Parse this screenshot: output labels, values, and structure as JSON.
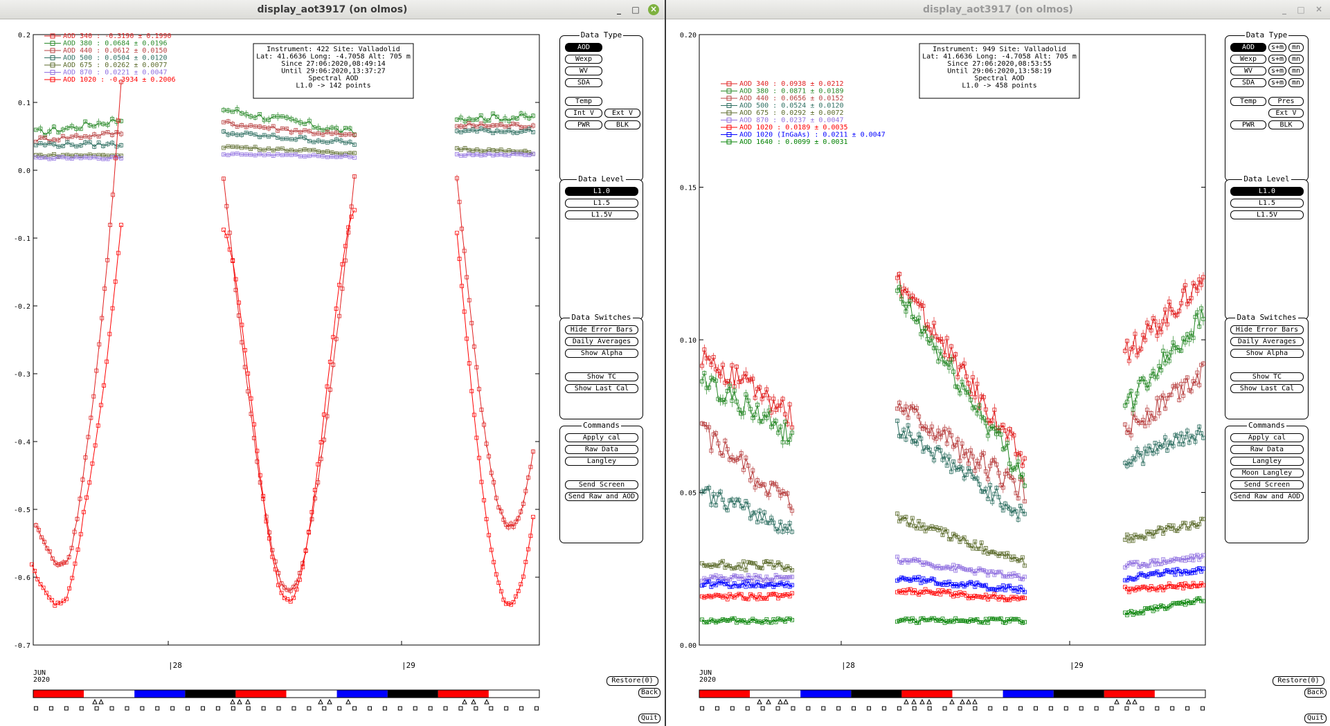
{
  "left": {
    "title": "display_aot3917 (on olmos)",
    "title_buttons": {
      "min": "_",
      "max": "□",
      "close": "×"
    },
    "plot": {
      "y_ticks": [
        "0.2",
        "0.1",
        "0.0",
        "-0.1",
        "-0.2",
        "-0.3",
        "-0.4",
        "-0.5",
        "-0.6",
        "-0.7"
      ],
      "y_min": -0.7,
      "y_max": 0.2,
      "day_labels": [
        "28",
        "29"
      ],
      "month": "JUN",
      "year": "2020",
      "info": [
        "Instrument: 422 Site: Valladolid",
        "Lat: 41.6636 Long: -4.7058 Alt: 705 m",
        "Since 27:06:2020,08:49:14",
        "Until 29:06:2020,13:37:27",
        "Spectral AOD",
        "L1.0 -> 142 points"
      ]
    },
    "legend": [
      {
        "text": "AOD 340   : -0.3190 ± 0.1990",
        "color": "#e02020"
      },
      {
        "text": "AOD 380   : 0.0684 ± 0.0196",
        "color": "#2a8a2a"
      },
      {
        "text": "AOD 440   : 0.0612 ± 0.0150",
        "color": "#b84040"
      },
      {
        "text": "AOD 500   : 0.0504 ± 0.0120",
        "color": "#2d6e60"
      },
      {
        "text": "AOD 675   : 0.0262 ± 0.0077",
        "color": "#5a6a2a"
      },
      {
        "text": "AOD 870   : 0.0221 ± 0.0047",
        "color": "#9070e0"
      },
      {
        "text": "AOD 1020  : -0.3934 ± 0.2006",
        "color": "#ff0000"
      }
    ],
    "data_type": {
      "label": "Data Type",
      "buttons": [
        "AOD",
        "Wexp",
        "WV",
        "SDA",
        "Temp",
        "Int V",
        "Ext V",
        "PWR",
        "BLK"
      ]
    },
    "data_level": {
      "label": "Data Level",
      "buttons": [
        "L1.0",
        "L1.5",
        "L1.5V"
      ]
    },
    "switches": {
      "label": "Data Switches",
      "buttons": [
        "Hide Error Bars",
        "Daily Averages",
        "Show Alpha",
        "Show TC",
        "Show Last Cal"
      ]
    },
    "commands": {
      "label": "Commands",
      "buttons": [
        "Apply cal",
        "Raw Data",
        "Langley",
        "Send Screen",
        "Send Raw and AOD"
      ]
    },
    "restore": "Restore(0)",
    "back": "Back",
    "quit": "Quit",
    "timeline_colors": [
      "#ff0000",
      "#ffffff",
      "#0000ff",
      "#000000",
      "#ff0000",
      "#ffffff",
      "#0000ff",
      "#000000",
      "#ff0000",
      "#ffffff"
    ]
  },
  "right": {
    "title": "display_aot3917 (on olmos)",
    "title_buttons": {
      "min": "_",
      "max": "□",
      "close": "×"
    },
    "plot": {
      "y_ticks": [
        "0.20",
        "0.15",
        "0.10",
        "0.05",
        "0.00"
      ],
      "y_min": 0,
      "y_max": 0.2,
      "day_labels": [
        "28",
        "29"
      ],
      "month": "JUN",
      "year": "2020",
      "info": [
        "Instrument: 949 Site: Valladolid",
        "Lat: 41.6636 Long: -4.7058 Alt: 705 m",
        "Since 27:06:2020,08:53:55",
        "Until 29:06:2020,13:58:19",
        "Spectral AOD",
        "L1.0 -> 458 points"
      ]
    },
    "legend": [
      {
        "text": "AOD 340   : 0.0938 ± 0.0212",
        "color": "#e02020"
      },
      {
        "text": "AOD 380   : 0.0871 ± 0.0189",
        "color": "#2a8a2a"
      },
      {
        "text": "AOD 440   : 0.0656 ± 0.0152",
        "color": "#b84040"
      },
      {
        "text": "AOD 500   : 0.0524 ± 0.0120",
        "color": "#2d6e60"
      },
      {
        "text": "AOD 675   : 0.0292 ± 0.0072",
        "color": "#5a6a2a"
      },
      {
        "text": "AOD 870   : 0.0237 ± 0.0047",
        "color": "#9070e0"
      },
      {
        "text": "AOD 1020  : 0.0189 ± 0.0035",
        "color": "#ff0000"
      },
      {
        "text": "AOD 1020 (InGaAs)  : 0.0211 ± 0.0047",
        "color": "#0000ff"
      },
      {
        "text": "AOD 1640  : 0.0099 ± 0.0031",
        "color": "#008000"
      }
    ],
    "data_type": {
      "label": "Data Type",
      "buttons": [
        "AOD",
        "s+m",
        "mn",
        "Wexp",
        "s+m",
        "mn",
        "WV",
        "s+m",
        "mn",
        "SDA",
        "s+m",
        "mn",
        "Temp",
        "Pres",
        "Ext V",
        "PWR",
        "BLK"
      ]
    },
    "data_level": {
      "label": "Data Level",
      "buttons": [
        "L1.0",
        "L1.5",
        "L1.5V"
      ]
    },
    "switches": {
      "label": "Data Switches",
      "buttons": [
        "Hide Error Bars",
        "Daily Averages",
        "Show Alpha",
        "Show TC",
        "Show Last Cal"
      ]
    },
    "commands": {
      "label": "Commands",
      "buttons": [
        "Apply cal",
        "Raw Data",
        "Langley",
        "Moon Langley",
        "Send Screen",
        "Send Raw and AOD"
      ]
    },
    "restore": "Restore(0)",
    "back": "Back",
    "quit": "Quit",
    "timeline_colors": [
      "#ff0000",
      "#ffffff",
      "#0000ff",
      "#000000",
      "#ff0000",
      "#ffffff",
      "#0000ff",
      "#000000",
      "#ff0000",
      "#ffffff"
    ]
  }
}
